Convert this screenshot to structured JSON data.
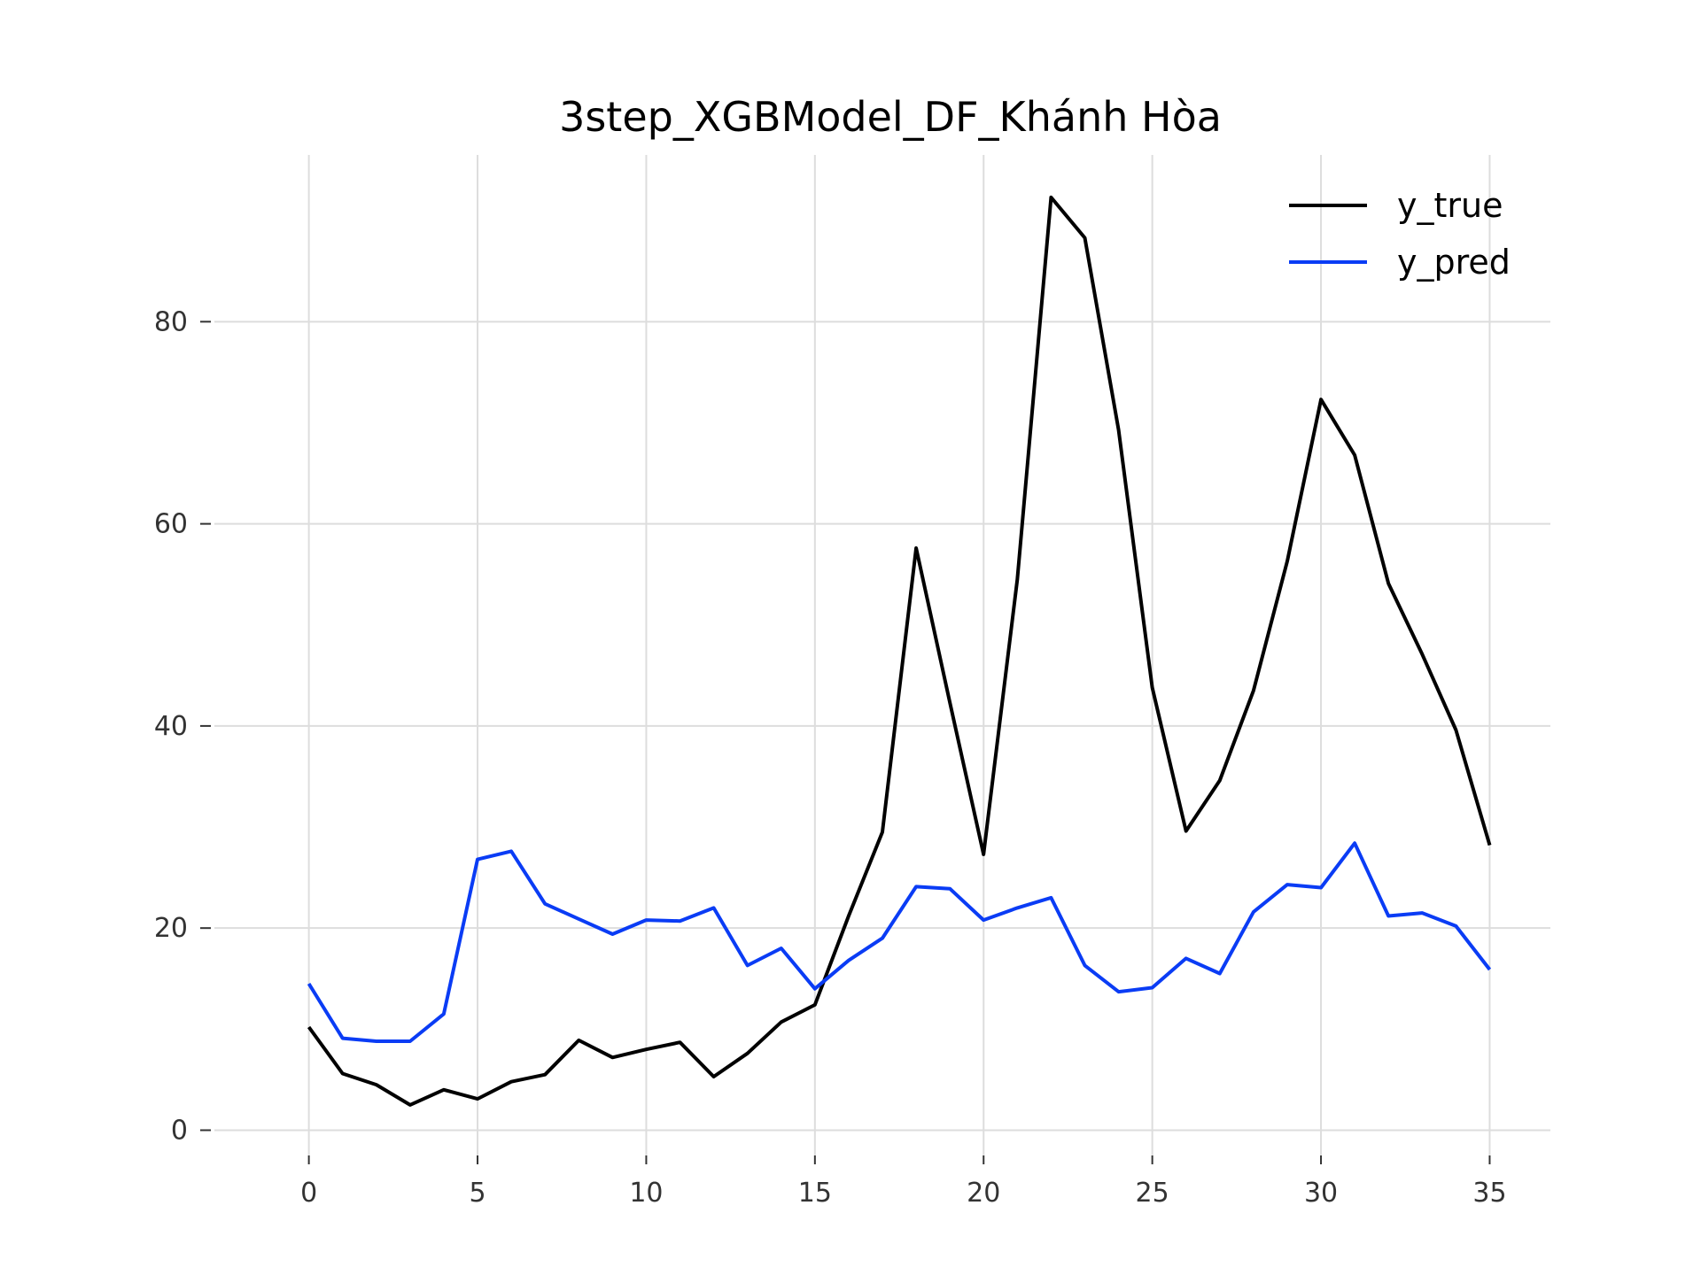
{
  "chart_data": {
    "type": "line",
    "title": "3step_XGBModel_DF_Khánh Hòa",
    "xlabel": "",
    "ylabel": "",
    "xlim": [
      -2.8,
      36.8
    ],
    "ylim": [
      -2.5,
      96.5
    ],
    "xticks": [
      0,
      5,
      10,
      15,
      20,
      25,
      30,
      35
    ],
    "yticks": [
      0,
      20,
      40,
      60,
      80
    ],
    "grid": true,
    "legend_position": "top-right",
    "x": [
      0,
      1,
      2,
      3,
      4,
      5,
      6,
      7,
      8,
      9,
      10,
      11,
      12,
      13,
      14,
      15,
      16,
      17,
      18,
      19,
      20,
      21,
      22,
      23,
      24,
      25,
      26,
      27,
      28,
      29,
      30,
      31,
      32,
      33,
      34,
      35
    ],
    "series": [
      {
        "name": "y_true",
        "color": "#000000",
        "values": [
          10.2,
          5.6,
          4.5,
          2.5,
          4.0,
          3.1,
          4.8,
          5.5,
          8.9,
          7.2,
          8.0,
          8.7,
          5.3,
          7.6,
          10.7,
          12.4,
          21.2,
          29.5,
          57.6,
          42.3,
          27.3,
          54.5,
          92.3,
          88.3,
          69.3,
          43.8,
          29.6,
          34.6,
          43.5,
          56.3,
          72.3,
          66.8,
          54.1,
          47.1,
          39.6,
          28.2
        ]
      },
      {
        "name": "y_pred",
        "color": "#0a3cf5",
        "values": [
          14.5,
          9.1,
          8.8,
          8.8,
          11.5,
          26.8,
          27.6,
          22.4,
          20.9,
          19.4,
          20.8,
          20.7,
          22.0,
          16.3,
          18.0,
          14.0,
          16.8,
          19.0,
          24.1,
          23.9,
          20.8,
          22.0,
          23.0,
          16.3,
          13.7,
          14.1,
          17.0,
          15.5,
          21.6,
          24.3,
          24.0,
          28.4,
          21.2,
          21.5,
          20.2,
          15.9
        ]
      }
    ]
  }
}
